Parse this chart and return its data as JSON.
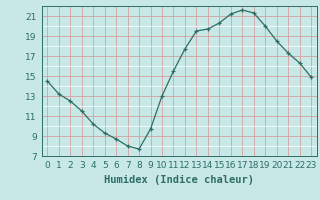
{
  "x": [
    0,
    1,
    2,
    3,
    4,
    5,
    6,
    7,
    8,
    9,
    10,
    11,
    12,
    13,
    14,
    15,
    16,
    17,
    18,
    19,
    20,
    21,
    22,
    23
  ],
  "y": [
    14.5,
    13.2,
    12.5,
    11.5,
    10.2,
    9.3,
    8.7,
    8.0,
    7.7,
    9.7,
    13.0,
    15.5,
    17.7,
    19.5,
    19.7,
    20.3,
    21.2,
    21.6,
    21.3,
    20.0,
    18.5,
    17.3,
    16.3,
    14.9
  ],
  "xlabel": "Humidex (Indice chaleur)",
  "ylim": [
    7,
    22
  ],
  "xlim": [
    -0.5,
    23.5
  ],
  "yticks": [
    7,
    9,
    11,
    13,
    15,
    17,
    19,
    21
  ],
  "xticks": [
    0,
    1,
    2,
    3,
    4,
    5,
    6,
    7,
    8,
    9,
    10,
    11,
    12,
    13,
    14,
    15,
    16,
    17,
    18,
    19,
    20,
    21,
    22,
    23
  ],
  "line_color": "#2d6e63",
  "marker": "+",
  "background_color": "#c8e8e8",
  "grid_major_color": "#d4a0a0",
  "grid_minor_color": "#ffffff",
  "text_color": "#2d6e63",
  "xlabel_fontsize": 7.5,
  "tick_fontsize": 6.5
}
